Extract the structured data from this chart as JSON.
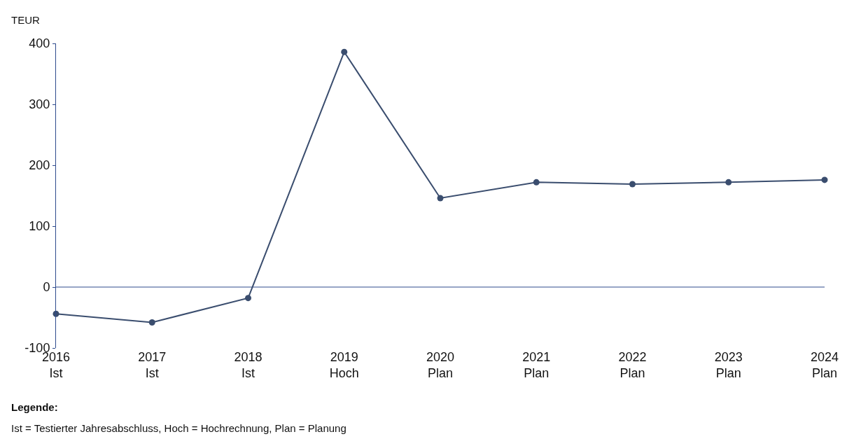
{
  "chart_data": {
    "type": "line",
    "ylabel": "TEUR",
    "categories": [
      "2016\nIst",
      "2017\nIst",
      "2018\nIst",
      "2019\nHoch",
      "2020\nPlan",
      "2021\nPlan",
      "2022\nPlan",
      "2023\nPlan",
      "2024\nPlan"
    ],
    "series": [
      {
        "color": "#3a4d6e",
        "values": [
          -44,
          -58,
          -18,
          386,
          146,
          172,
          169,
          172,
          176
        ]
      }
    ],
    "ylim": [
      -100,
      400
    ],
    "yticks": [
      -100,
      0,
      100,
      200,
      300,
      400
    ],
    "marker": "circle",
    "line_style": "solid",
    "grid": false,
    "ref_lines": [
      {
        "axis": "y",
        "value": 0,
        "color": "#2e4a8c"
      }
    ],
    "annotations": [
      "Legende:",
      "Ist = Testierter Jahresabschluss, Hoch = Hochrechnung, Plan = Planung"
    ]
  }
}
